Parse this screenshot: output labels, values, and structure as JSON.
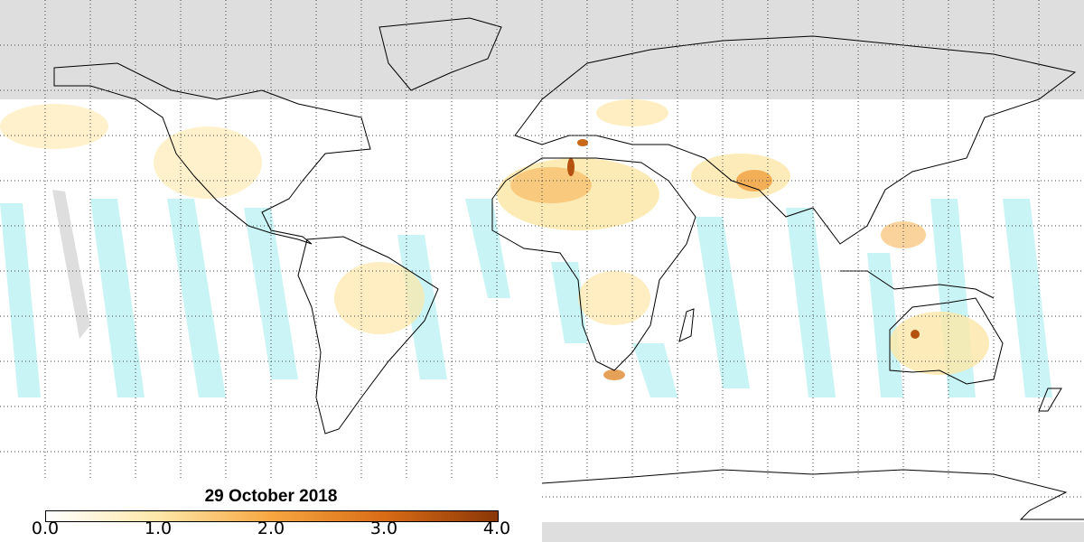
{
  "map": {
    "date_label": "29 October 2018",
    "colorbar": {
      "min": 0.0,
      "max": 4.0,
      "tick_labels": [
        "0.0",
        "1.0",
        "2.0",
        "3.0",
        "4.0"
      ],
      "colors": [
        "#ffffff",
        "#fde7a8",
        "#f7a640",
        "#d86c16",
        "#8a3606"
      ]
    },
    "no_data_color": "#dedede",
    "cloud_color": "#c4f3f4",
    "coastline_color": "#000000",
    "gridline_style": "dotted"
  }
}
